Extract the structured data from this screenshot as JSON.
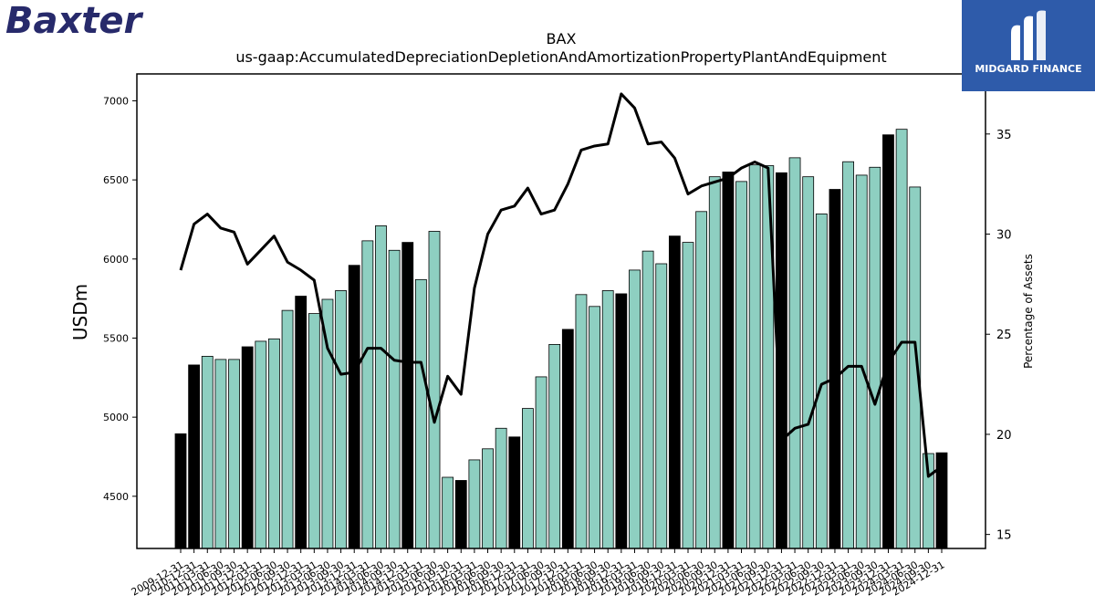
{
  "logos": {
    "left_brand": "Baxter",
    "right_brand": "MIDGARD FINANCE"
  },
  "chart_data": {
    "type": "bar",
    "title": "BAX",
    "subtitle": "us-gaap:AccumulatedDepreciationDepletionAndAmortizationPropertyPlantAndEquipment",
    "ylabel": "USDm",
    "y2label": "Percentage of Assets",
    "ylim": [
      4170,
      7170
    ],
    "y2lim": [
      14.3,
      38.0
    ],
    "yticks": [
      4500,
      5000,
      5500,
      6000,
      6500,
      7000
    ],
    "y2ticks": [
      15,
      20,
      25,
      30,
      35
    ],
    "bar_colors": {
      "annual": "#000000",
      "quarterly": "#8ecfc1"
    },
    "line_color": "#000000",
    "categories": [
      "2009-12-31",
      "2010-12-31",
      "2011-03-31",
      "2011-06-30",
      "2011-09-30",
      "2011-12-31",
      "2012-03-31",
      "2012-06-30",
      "2012-09-30",
      "2012-12-31",
      "2013-03-31",
      "2013-06-30",
      "2013-09-30",
      "2013-12-31",
      "2014-03-31",
      "2014-06-30",
      "2014-09-30",
      "2014-12-31",
      "2015-03-31",
      "2015-06-30",
      "2015-09-30",
      "2015-12-31",
      "2016-03-31",
      "2016-06-30",
      "2016-09-30",
      "2016-12-31",
      "2017-03-31",
      "2017-06-30",
      "2017-09-30",
      "2017-12-31",
      "2018-03-31",
      "2018-06-30",
      "2018-09-30",
      "2018-12-31",
      "2019-03-31",
      "2019-06-30",
      "2019-09-30",
      "2019-12-31",
      "2020-03-31",
      "2020-06-30",
      "2020-09-30",
      "2020-12-31",
      "2021-03-31",
      "2021-06-30",
      "2021-09-30",
      "2021-12-31",
      "2022-03-31",
      "2022-06-30",
      "2022-09-30",
      "2022-12-31",
      "2023-03-31",
      "2023-06-30",
      "2023-09-30",
      "2023-12-31",
      "2024-03-31",
      "2024-06-30",
      "2024-09-30",
      "2024-12-31"
    ],
    "annual_flags": [
      1,
      1,
      0,
      0,
      0,
      1,
      0,
      0,
      0,
      1,
      0,
      0,
      0,
      1,
      0,
      0,
      0,
      1,
      0,
      0,
      0,
      1,
      0,
      0,
      0,
      1,
      0,
      0,
      0,
      1,
      0,
      0,
      0,
      1,
      0,
      0,
      0,
      1,
      0,
      0,
      0,
      1,
      0,
      0,
      0,
      1,
      0,
      0,
      0,
      1,
      0,
      0,
      0,
      1,
      0,
      0,
      0,
      1
    ],
    "series": [
      {
        "values": [
          4895,
          5330,
          5385,
          5365,
          5365,
          5445,
          5480,
          5495,
          5675,
          5765,
          5655,
          5745,
          5800,
          5960,
          6115,
          6210,
          6055,
          6105,
          5870,
          6175,
          4620,
          4600,
          4730,
          4800,
          4930,
          4875,
          5055,
          5255,
          5460,
          5555,
          5775,
          5700,
          5800,
          5780,
          5930,
          6050,
          5970,
          6145,
          6105,
          6300,
          6520,
          6550,
          6490,
          6595,
          6590,
          6545,
          6640,
          6520,
          6285,
          6440,
          6615,
          6530,
          6580,
          6785,
          6820,
          6455,
          4770,
          4775
        ]
      },
      {
        "values": [
          28.2,
          30.5,
          31.0,
          30.3,
          30.1,
          28.5,
          29.2,
          29.9,
          28.6,
          28.2,
          27.7,
          24.3,
          23.0,
          23.1,
          24.3,
          24.3,
          23.7,
          23.6,
          23.6,
          20.6,
          22.9,
          22.0,
          27.3,
          30.0,
          31.2,
          31.4,
          32.3,
          31.0,
          31.2,
          32.5,
          34.2,
          34.4,
          34.5,
          37.0,
          36.3,
          34.5,
          34.6,
          33.8,
          32.0,
          32.4,
          32.6,
          32.8,
          33.3,
          33.6,
          33.3,
          19.7,
          20.3,
          20.5,
          22.5,
          22.8,
          23.4,
          23.4,
          21.5,
          23.6,
          24.6,
          24.6,
          17.9,
          18.4
        ]
      }
    ]
  }
}
